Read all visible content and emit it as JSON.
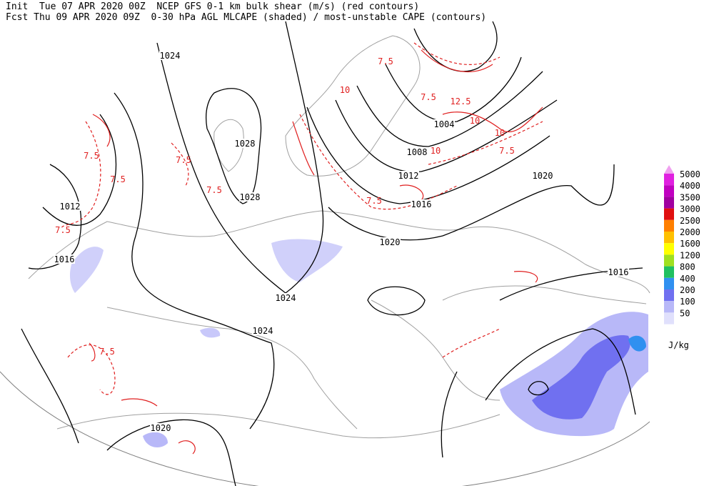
{
  "header": {
    "line1": "Init  Tue 07 APR 2020 00Z  NCEP GFS 0-1 km bulk shear (m/s) (red contours)",
    "line2": "Fcst Thu 09 APR 2020 09Z  0-30 hPa AGL MLCAPE (shaded) / most-unstable CAPE (contours)"
  },
  "legend": {
    "unit": "J/kg",
    "top_color": "#f0a0f0",
    "levels": [
      {
        "label": "5000",
        "color": "#e020e0"
      },
      {
        "label": "4000",
        "color": "#c000c0"
      },
      {
        "label": "3500",
        "color": "#a000a0"
      },
      {
        "label": "3000",
        "color": "#e01010"
      },
      {
        "label": "2500",
        "color": "#ff7f00"
      },
      {
        "label": "2000",
        "color": "#ffc000"
      },
      {
        "label": "1600",
        "color": "#ffff00"
      },
      {
        "label": "1200",
        "color": "#a0e020"
      },
      {
        "label": "800",
        "color": "#20c060"
      },
      {
        "label": "400",
        "color": "#3090f0"
      },
      {
        "label": "200",
        "color": "#7070f0"
      },
      {
        "label": "100",
        "color": "#b8b8f8"
      },
      {
        "label": "50",
        "color": "#e0e0fc"
      }
    ]
  },
  "isobar_labels": [
    "1024",
    "1028",
    "1028",
    "1012",
    "1016",
    "1024",
    "1024",
    "1020",
    "1020",
    "1016",
    "1012",
    "1008",
    "1004",
    "1016",
    "1020"
  ],
  "shear_labels": [
    "7.5",
    "7.5",
    "7.5",
    "7.5",
    "7.5",
    "10",
    "10",
    "12.5",
    "10",
    "10",
    "7.5",
    "7.5",
    "7.5",
    "7.5",
    "7.5"
  ]
}
